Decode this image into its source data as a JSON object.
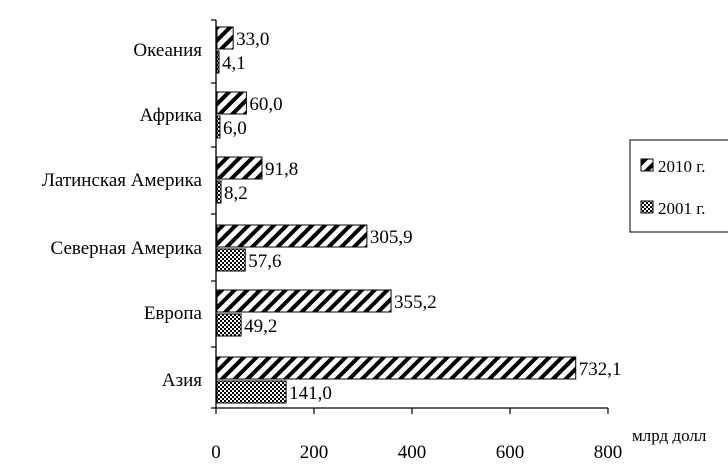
{
  "chart_data": {
    "type": "bar",
    "orientation": "horizontal",
    "categories": [
      "Азия",
      "Европа",
      "Северная Америка",
      "Латинская Америка",
      "Африка",
      "Океания"
    ],
    "series": [
      {
        "name": "2010 г.",
        "values": [
          732.1,
          355.2,
          305.9,
          91.8,
          60.0,
          33.0
        ],
        "labels": [
          "732,1",
          "355,2",
          "305,9",
          "91,8",
          "60,0",
          "33,0"
        ],
        "pattern": "diagonal-hatch"
      },
      {
        "name": "2001 г.",
        "values": [
          141.0,
          49.2,
          57.6,
          8.2,
          6.0,
          4.1
        ],
        "labels": [
          "141,0",
          "49,2",
          "57,6",
          "8,2",
          "6,0",
          "4,1"
        ],
        "pattern": "crosshatch"
      }
    ],
    "xlim": [
      0,
      800
    ],
    "xticks": [
      "0",
      "200",
      "400",
      "600",
      "800"
    ],
    "xlabel": "млрд долл",
    "ylabel": "",
    "title": "",
    "legend_position": "right",
    "grid": false
  }
}
